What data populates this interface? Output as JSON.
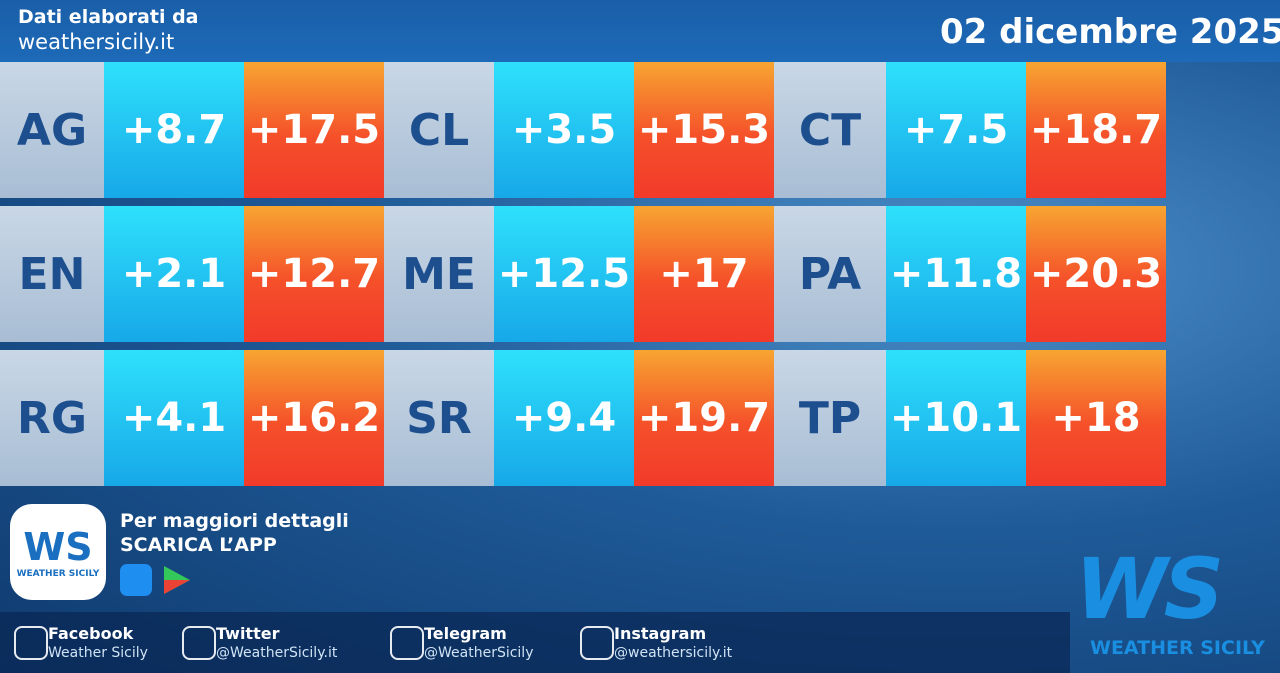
{
  "header": {
    "source_label": "Dati elaborati da",
    "source_site": "weathersicily.it",
    "date": "02 dicembre 2025"
  },
  "table": {
    "rows": [
      [
        "AG",
        "+8.7",
        "+17.5",
        "CL",
        "+3.5",
        "+15.3",
        "CT",
        "+7.5",
        "+18.7"
      ],
      [
        "EN",
        "+2.1",
        "+12.7",
        "ME",
        "+12.5",
        "+17",
        "PA",
        "+11.8",
        "+20.3"
      ],
      [
        "RG",
        "+4.1",
        "+16.2",
        "SR",
        "+9.4",
        "+19.7",
        "TP",
        "+10.1",
        "+18"
      ]
    ]
  },
  "promo": {
    "line1": "Per maggiori dettagli",
    "line2": "SCARICA L’APP",
    "logo_letters": "WS",
    "logo_name": "WEATHER SICILY"
  },
  "social": [
    {
      "network": "Facebook",
      "handle": "Weather Sicily"
    },
    {
      "network": "Twitter",
      "handle": "@WeatherSicily.it"
    },
    {
      "network": "Telegram",
      "handle": "@WeatherSicily"
    },
    {
      "network": "Instagram",
      "handle": "@weathersicily.it"
    }
  ],
  "brand": {
    "letters": "WS",
    "name": "WEATHER SICILY"
  }
}
